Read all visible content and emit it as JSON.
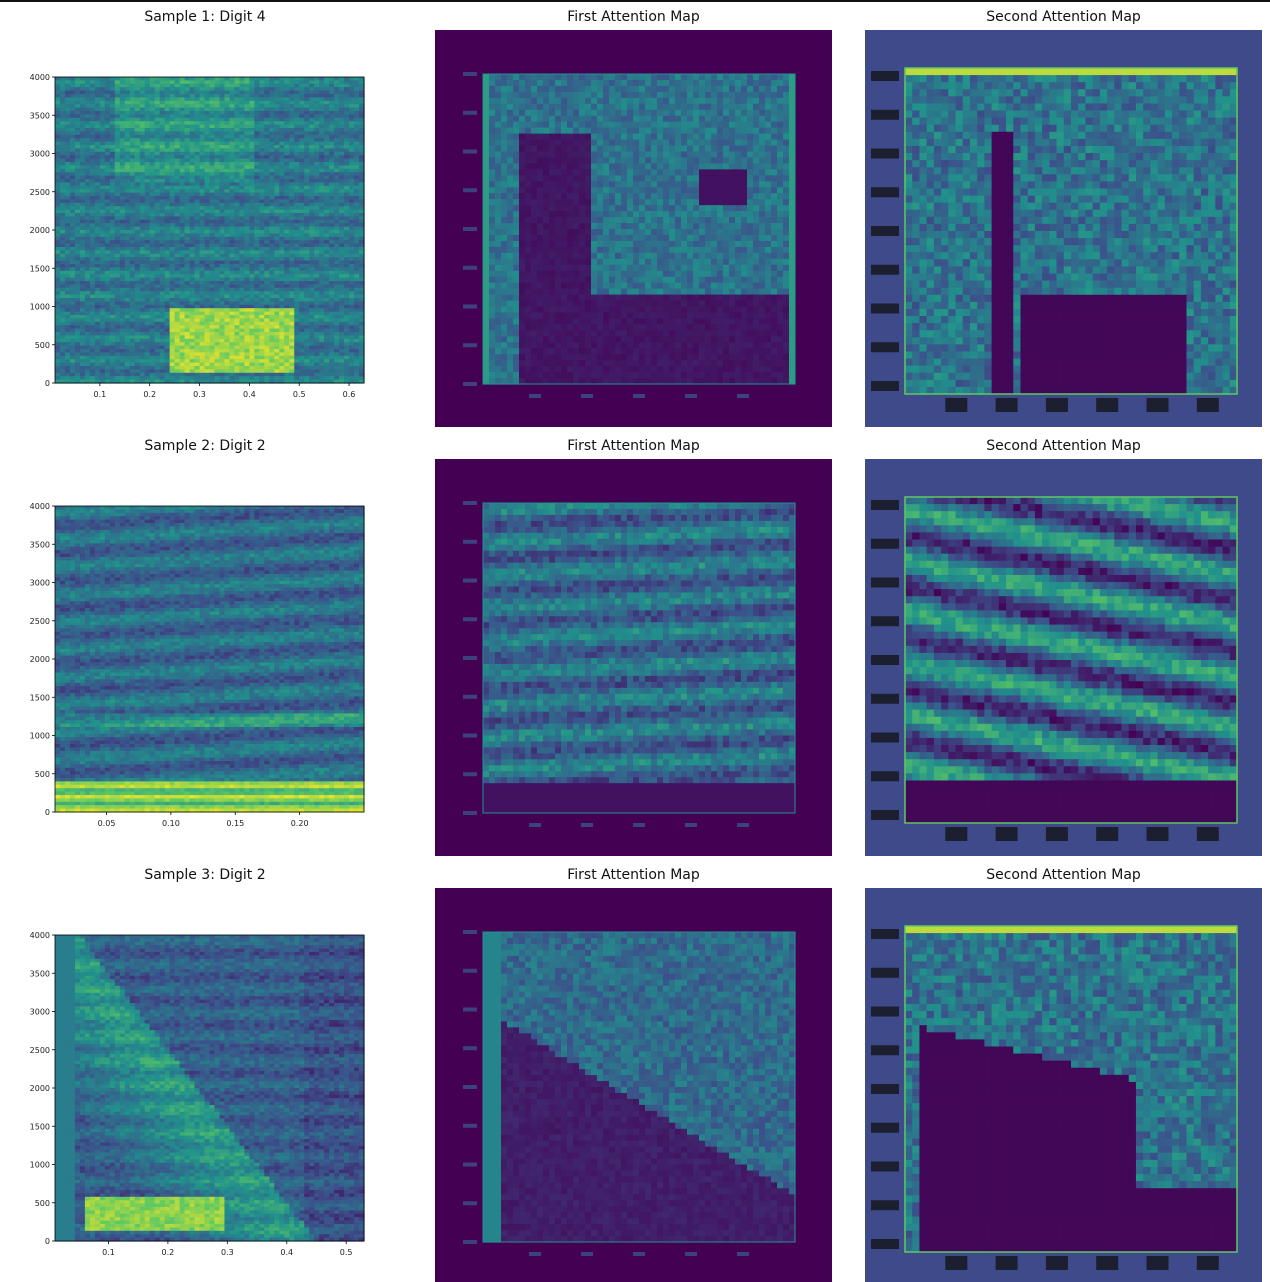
{
  "colors": {
    "viridis_dark": "#440154",
    "viridis_navy": "#3b528b",
    "viridis_teal": "#21918c",
    "viridis_green": "#5ec962",
    "viridis_yellow": "#fde725",
    "attention2_frame": "#3f4a8a"
  },
  "chart_data": [
    {
      "type": "heatmap",
      "title": "Sample 1: Digit 4",
      "xlabel": "",
      "ylabel": "",
      "x_ticks": [
        "0.1",
        "0.2",
        "0.3",
        "0.4",
        "0.5",
        "0.6"
      ],
      "y_ticks": [
        "0",
        "500",
        "1000",
        "1500",
        "2000",
        "2500",
        "3000",
        "3500",
        "4000"
      ],
      "ylim": [
        0,
        4000
      ],
      "xlim": [
        0.01,
        0.63
      ]
    },
    {
      "type": "heatmap",
      "title": "First Attention Map"
    },
    {
      "type": "heatmap",
      "title": "Second Attention Map"
    },
    {
      "type": "heatmap",
      "title": "Sample 2: Digit 2",
      "xlabel": "",
      "ylabel": "",
      "x_ticks": [
        "0.05",
        "0.10",
        "0.15",
        "0.20"
      ],
      "y_ticks": [
        "0",
        "500",
        "1000",
        "1500",
        "2000",
        "2500",
        "3000",
        "3500",
        "4000"
      ],
      "ylim": [
        0,
        4000
      ],
      "xlim": [
        0.01,
        0.25
      ]
    },
    {
      "type": "heatmap",
      "title": "First Attention Map"
    },
    {
      "type": "heatmap",
      "title": "Second Attention Map"
    },
    {
      "type": "heatmap",
      "title": "Sample 3: Digit 2",
      "xlabel": "",
      "ylabel": "",
      "x_ticks": [
        "0.1",
        "0.2",
        "0.3",
        "0.4",
        "0.5"
      ],
      "y_ticks": [
        "0",
        "500",
        "1000",
        "1500",
        "2000",
        "2500",
        "3000",
        "3500",
        "4000"
      ],
      "ylim": [
        0,
        4000
      ],
      "xlim": [
        0.01,
        0.53
      ]
    },
    {
      "type": "heatmap",
      "title": "First Attention Map"
    },
    {
      "type": "heatmap",
      "title": "Second Attention Map"
    }
  ]
}
